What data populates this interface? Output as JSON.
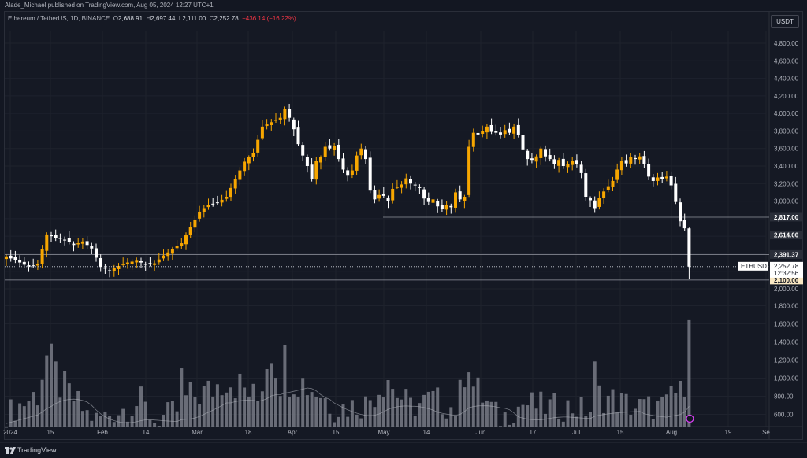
{
  "header": {
    "published_text": "Alade_Michael published on TradingView.com, Aug 05, 2024 12:27 UTC+1"
  },
  "legend": {
    "symbol": "Ethereum / TetherUS, 1D, BINANCE",
    "open_label": "O",
    "open": "2,688.91",
    "high_label": "H",
    "high": "2,697.44",
    "low_label": "L",
    "low": "2,111.00",
    "close_label": "C",
    "close": "2,252.78",
    "change": "−436.14 (−16.22%)"
  },
  "price_scale": {
    "unit_button": "USDT"
  },
  "footer": {
    "brand": "TradingView",
    "logo_icon": "tradingview-logo-icon"
  },
  "colors": {
    "background": "#131722",
    "up_candle": "#f7a600",
    "down_candle": "#ffffff",
    "volume_bar": "#787b86",
    "grid": "#1e222d",
    "level_line": "#9598a1"
  },
  "chart_data": {
    "type": "candlestick",
    "symbol": "ETHUSDT",
    "timeframe": "1D",
    "price_ylim": [
      2000,
      4900
    ],
    "price_ticks": [
      "4,800.00",
      "4,600.00",
      "4,400.00",
      "4,200.00",
      "4,000.00",
      "3,800.00",
      "3,600.00",
      "3,400.00",
      "3,200.00",
      "3,000.00",
      "2,800.00",
      "2,600.00",
      "2,400.00",
      "2,200.00",
      "2,000.00"
    ],
    "volume_ylim": [
      480,
      1750
    ],
    "volume_ticks": [
      "1,800.00",
      "1,600.00",
      "1,400.00",
      "1,200.00",
      "1,000.00",
      "800.00",
      "600.00"
    ],
    "x_ticks": [
      "2024",
      "15",
      "Feb",
      "14",
      "Mar",
      "18",
      "Apr",
      "15",
      "May",
      "14",
      "Jun",
      "17",
      "Jul",
      "15",
      "Aug",
      "19",
      "Se"
    ],
    "horizontal_levels": [
      {
        "label": "2,817.00",
        "value": 2817
      },
      {
        "label": "2,614.00",
        "value": 2614
      },
      {
        "label": "2,391.37",
        "value": 2391.37
      },
      {
        "label": "2,100.00",
        "value": 2100
      }
    ],
    "last_price": {
      "symbol_label": "ETHUSDT",
      "price": "2,252.78",
      "countdown": "12:32:56",
      "value": 2252.78
    },
    "price_anchors": [
      [
        0,
        2370
      ],
      [
        3,
        2300
      ],
      [
        5,
        2250
      ],
      [
        7,
        2280
      ],
      [
        9,
        2620
      ],
      [
        11,
        2580
      ],
      [
        13,
        2560
      ],
      [
        15,
        2500
      ],
      [
        17,
        2540
      ],
      [
        19,
        2460
      ],
      [
        21,
        2250
      ],
      [
        23,
        2210
      ],
      [
        25,
        2260
      ],
      [
        27,
        2300
      ],
      [
        29,
        2320
      ],
      [
        31,
        2280
      ],
      [
        33,
        2290
      ],
      [
        35,
        2380
      ],
      [
        37,
        2450
      ],
      [
        39,
        2520
      ],
      [
        41,
        2700
      ],
      [
        43,
        2880
      ],
      [
        45,
        2960
      ],
      [
        47,
        2980
      ],
      [
        49,
        3050
      ],
      [
        51,
        3250
      ],
      [
        53,
        3450
      ],
      [
        55,
        3550
      ],
      [
        57,
        3850
      ],
      [
        59,
        3900
      ],
      [
        61,
        3950
      ],
      [
        62,
        4050
      ],
      [
        63,
        3950
      ],
      [
        64,
        3820
      ],
      [
        65,
        3650
      ],
      [
        66,
        3520
      ],
      [
        67,
        3400
      ],
      [
        68,
        3250
      ],
      [
        69,
        3460
      ],
      [
        70,
        3500
      ],
      [
        71,
        3620
      ],
      [
        72,
        3600
      ],
      [
        73,
        3630
      ],
      [
        74,
        3480
      ],
      [
        75,
        3360
      ],
      [
        76,
        3290
      ],
      [
        77,
        3350
      ],
      [
        78,
        3520
      ],
      [
        79,
        3600
      ],
      [
        80,
        3480
      ],
      [
        81,
        3120
      ],
      [
        82,
        3020
      ],
      [
        83,
        3070
      ],
      [
        84,
        3060
      ],
      [
        85,
        3000
      ],
      [
        86,
        3140
      ],
      [
        87,
        3160
      ],
      [
        88,
        3190
      ],
      [
        89,
        3260
      ],
      [
        90,
        3200
      ],
      [
        91,
        3180
      ],
      [
        92,
        3150
      ],
      [
        93,
        3030
      ],
      [
        94,
        2990
      ],
      [
        95,
        3020
      ],
      [
        96,
        2940
      ],
      [
        97,
        2910
      ],
      [
        98,
        2960
      ],
      [
        99,
        2930
      ],
      [
        100,
        3100
      ],
      [
        101,
        3020
      ],
      [
        102,
        3050
      ],
      [
        103,
        3620
      ],
      [
        104,
        3780
      ],
      [
        105,
        3760
      ],
      [
        106,
        3800
      ],
      [
        107,
        3850
      ],
      [
        108,
        3790
      ],
      [
        109,
        3780
      ],
      [
        110,
        3760
      ],
      [
        111,
        3810
      ],
      [
        112,
        3780
      ],
      [
        113,
        3850
      ],
      [
        114,
        3750
      ],
      [
        115,
        3590
      ],
      [
        116,
        3480
      ],
      [
        117,
        3470
      ],
      [
        118,
        3510
      ],
      [
        119,
        3600
      ],
      [
        120,
        3510
      ],
      [
        121,
        3480
      ],
      [
        122,
        3420
      ],
      [
        123,
        3470
      ],
      [
        124,
        3400
      ],
      [
        125,
        3420
      ],
      [
        126,
        3460
      ],
      [
        127,
        3420
      ],
      [
        128,
        3320
      ],
      [
        129,
        3050
      ],
      [
        130,
        3010
      ],
      [
        131,
        2920
      ],
      [
        132,
        3040
      ],
      [
        133,
        3110
      ],
      [
        134,
        3170
      ],
      [
        135,
        3230
      ],
      [
        136,
        3360
      ],
      [
        137,
        3460
      ],
      [
        138,
        3430
      ],
      [
        139,
        3500
      ],
      [
        140,
        3480
      ],
      [
        141,
        3510
      ],
      [
        142,
        3420
      ],
      [
        143,
        3280
      ],
      [
        144,
        3230
      ],
      [
        145,
        3270
      ],
      [
        146,
        3250
      ],
      [
        147,
        3280
      ],
      [
        148,
        3180
      ],
      [
        149,
        2990
      ],
      [
        150,
        2770
      ],
      [
        151,
        2690
      ],
      [
        152,
        2253
      ]
    ],
    "volume_anchors": [
      [
        0,
        640
      ],
      [
        7,
        880
      ],
      [
        8,
        1130
      ],
      [
        9,
        1300
      ],
      [
        12,
        980
      ],
      [
        18,
        640
      ],
      [
        20,
        580
      ],
      [
        30,
        780
      ],
      [
        33,
        560
      ],
      [
        38,
        680
      ],
      [
        39,
        1040
      ],
      [
        40,
        820
      ],
      [
        45,
        900
      ],
      [
        47,
        980
      ],
      [
        49,
        1090
      ],
      [
        56,
        800
      ],
      [
        58,
        1280
      ],
      [
        59,
        1460
      ],
      [
        61,
        1060
      ],
      [
        62,
        1260
      ],
      [
        63,
        1090
      ],
      [
        64,
        1080
      ],
      [
        70,
        880
      ],
      [
        72,
        760
      ],
      [
        73,
        700
      ],
      [
        80,
        760
      ],
      [
        85,
        1100
      ],
      [
        86,
        940
      ],
      [
        90,
        720
      ],
      [
        95,
        810
      ],
      [
        100,
        700
      ],
      [
        101,
        860
      ],
      [
        102,
        1190
      ],
      [
        103,
        1340
      ],
      [
        104,
        960
      ],
      [
        110,
        580
      ],
      [
        115,
        760
      ],
      [
        120,
        720
      ],
      [
        125,
        720
      ],
      [
        130,
        680
      ],
      [
        131,
        1090
      ],
      [
        132,
        860
      ],
      [
        140,
        720
      ],
      [
        147,
        720
      ],
      [
        148,
        920
      ],
      [
        150,
        860
      ],
      [
        151,
        1090
      ],
      [
        152,
        1640
      ]
    ]
  }
}
